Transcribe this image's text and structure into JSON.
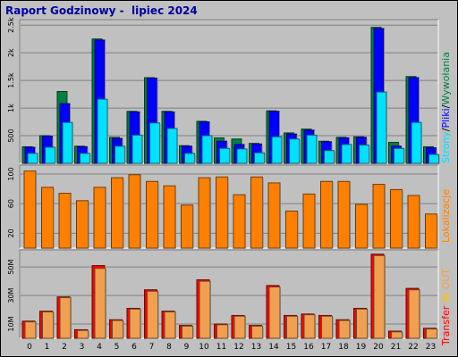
{
  "title": "Raport Godzinowy -  lipiec 2024",
  "colors": {
    "background": "#c0c0c0",
    "hits": "#008040",
    "files": "#0000ff",
    "pages": "#00e0ff",
    "visits": "#ff8000",
    "kbytes": "#ff0000",
    "kbytes_in": "#ffc000",
    "kbytes_out": "#f0a050",
    "title": "#0000a0"
  },
  "chart_data": [
    {
      "type": "bar",
      "panel": "top",
      "categories": [
        "0",
        "1",
        "2",
        "3",
        "4",
        "5",
        "6",
        "7",
        "8",
        "9",
        "10",
        "11",
        "12",
        "13",
        "14",
        "15",
        "16",
        "17",
        "18",
        "19",
        "20",
        "21",
        "22",
        "23"
      ],
      "yticks": [
        "500",
        "1k",
        "1.5k",
        "2k",
        "2.5k"
      ],
      "ylim": [
        0,
        2600
      ],
      "legend": {
        "sep": "/",
        "labels": [
          "Strony",
          "Pliki",
          "Wywołania"
        ]
      },
      "series": [
        {
          "name": "Wywołania",
          "values": [
            300,
            500,
            1300,
            310,
            2250,
            470,
            940,
            1550,
            940,
            320,
            760,
            460,
            440,
            360,
            950,
            550,
            620,
            400,
            470,
            480,
            2460,
            380,
            1570,
            300
          ]
        },
        {
          "name": "Pliki",
          "values": [
            290,
            490,
            1080,
            300,
            2230,
            450,
            930,
            1540,
            930,
            310,
            750,
            400,
            340,
            350,
            940,
            530,
            600,
            390,
            460,
            470,
            2440,
            310,
            1550,
            280
          ]
        },
        {
          "name": "Strony",
          "values": [
            180,
            290,
            740,
            180,
            1160,
            310,
            510,
            730,
            630,
            180,
            500,
            270,
            260,
            190,
            480,
            440,
            510,
            230,
            340,
            330,
            1290,
            270,
            740,
            160
          ]
        }
      ]
    },
    {
      "type": "bar",
      "panel": "middle",
      "categories": [
        "0",
        "1",
        "2",
        "3",
        "4",
        "5",
        "6",
        "7",
        "8",
        "9",
        "10",
        "11",
        "12",
        "13",
        "14",
        "15",
        "16",
        "17",
        "18",
        "19",
        "20",
        "21",
        "22",
        "23"
      ],
      "yticks": [
        "20",
        "60",
        "100"
      ],
      "ylim": [
        0,
        112
      ],
      "legend": {
        "labels": [
          "Lokalizacje"
        ]
      },
      "series": [
        {
          "name": "Lokalizacje",
          "values": [
            104,
            82,
            74,
            64,
            82,
            95,
            99,
            90,
            84,
            58,
            95,
            96,
            72,
            96,
            88,
            50,
            73,
            90,
            90,
            59,
            86,
            79,
            71,
            46
          ]
        }
      ]
    },
    {
      "type": "bar",
      "panel": "bottom",
      "categories": [
        "0",
        "1",
        "2",
        "3",
        "4",
        "5",
        "6",
        "7",
        "8",
        "9",
        "10",
        "11",
        "12",
        "13",
        "14",
        "15",
        "16",
        "17",
        "18",
        "19",
        "20",
        "21",
        "22",
        "23"
      ],
      "yticks": [
        "10M",
        "30M",
        "50M"
      ],
      "ylim": [
        0,
        62000000
      ],
      "legend": {
        "labels": [
          "Transfer",
          "IN",
          "OUT"
        ]
      },
      "series": [
        {
          "name": "Transfer",
          "values": [
            12000000,
            19000000,
            29000000,
            6000000,
            51000000,
            13000000,
            21000000,
            34000000,
            19000000,
            9000000,
            41000000,
            10000000,
            16000000,
            9000000,
            37000000,
            16000000,
            17000000,
            16000000,
            13000000,
            21000000,
            59000000,
            5000000,
            35000000,
            7000000
          ]
        },
        {
          "name": "OUT",
          "values": [
            11500000,
            18500000,
            28500000,
            5500000,
            49000000,
            12500000,
            20500000,
            33000000,
            18500000,
            8500000,
            40000000,
            9500000,
            15500000,
            8500000,
            36000000,
            15500000,
            16500000,
            15500000,
            12500000,
            20500000,
            58000000,
            4500000,
            34000000,
            6500000
          ]
        }
      ]
    }
  ]
}
